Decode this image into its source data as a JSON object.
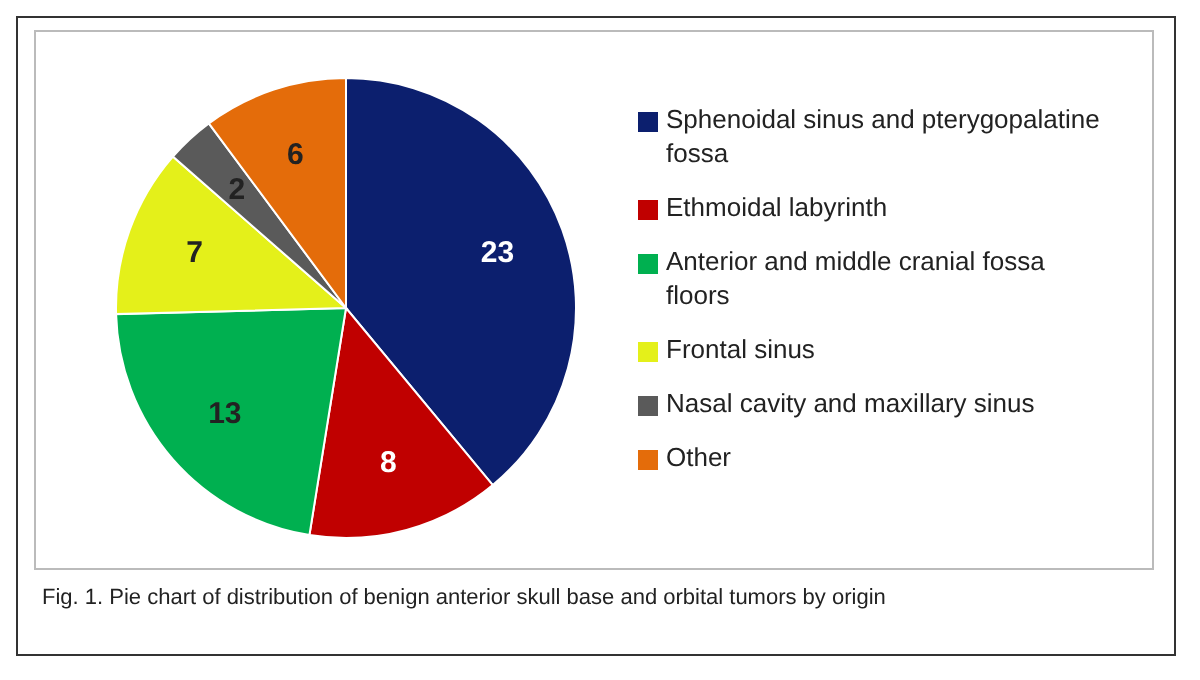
{
  "chart_data": {
    "type": "pie",
    "categories": [
      "Sphenoidal sinus and pterygopalatine fossa",
      "Ethmoidal labyrinth",
      "Anterior and middle cranial fossa floors",
      "Frontal sinus",
      "Nasal cavity and maxillary sinus",
      "Other"
    ],
    "values": [
      23,
      8,
      13,
      7,
      2,
      6
    ],
    "colors": [
      "#0c1f6e",
      "#c00000",
      "#00b050",
      "#e4f01a",
      "#5a5a5a",
      "#e46c0a"
    ],
    "data_labels": true,
    "legend": "right",
    "annotations": [
      "Fig. 1. Pie chart of distribution of benign anterior skull base and orbital tumors by origin"
    ]
  }
}
